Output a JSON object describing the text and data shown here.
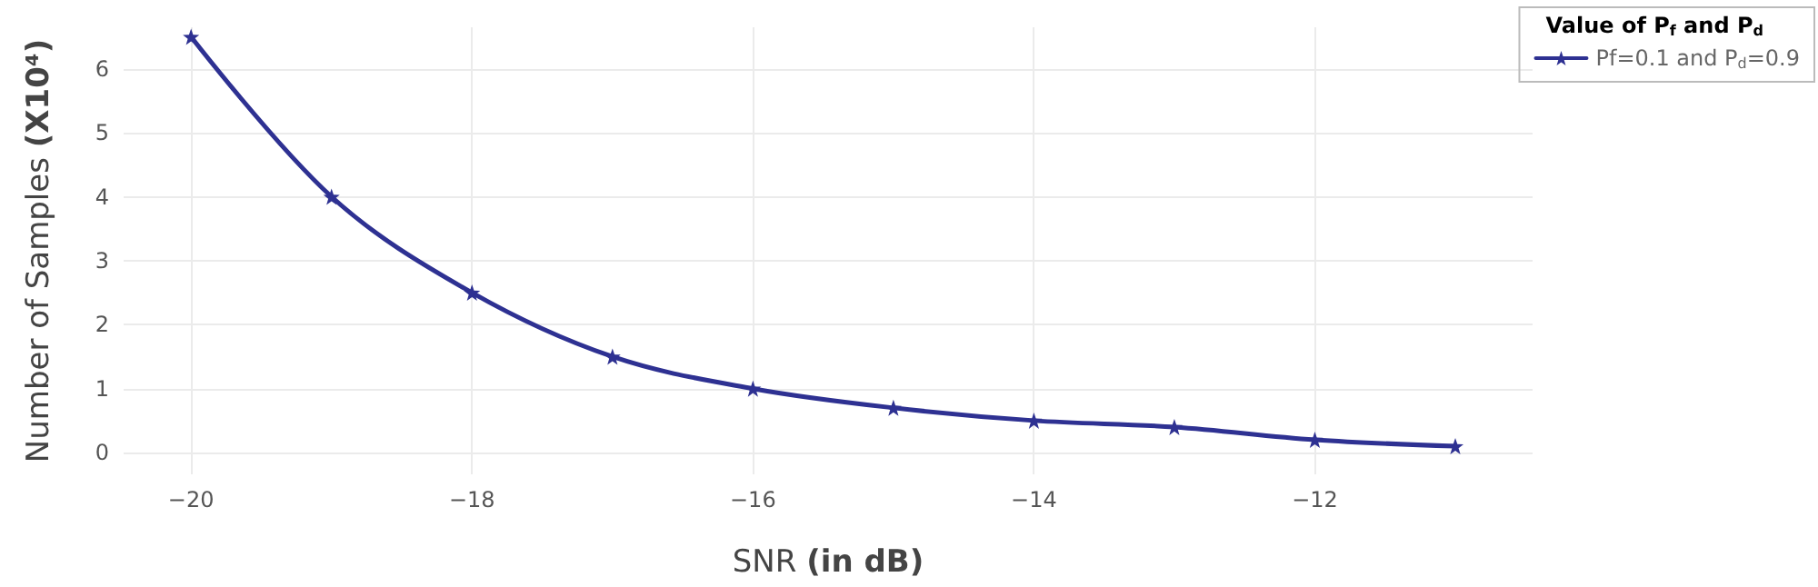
{
  "chart_data": {
    "type": "line",
    "xlabel": "SNR (in dB)",
    "ylabel": "Number of Samples (X10⁴)",
    "legend_title": "Value of P$_{f}$ and P$_{d}$",
    "x": [
      -20,
      -19,
      -18,
      -17,
      -16,
      -15,
      -14,
      -13,
      -12,
      -11
    ],
    "series": [
      {
        "name": "Pf=0.1 and P$_{d}$=0.9",
        "color": "#2e3192",
        "values": [
          6.5,
          4,
          2.5,
          1.5,
          1,
          0.7,
          0.5,
          0.4,
          0.2,
          0.1
        ]
      }
    ],
    "xlim": [
      -20.48,
      -10.45
    ],
    "xticks": [
      -20,
      -18,
      -16,
      -14,
      -12
    ],
    "ylim": [
      -0.34,
      6.65
    ],
    "yticks": [
      0,
      1,
      2,
      3,
      4,
      5,
      6
    ],
    "grid": true,
    "legend": "top right",
    "marker": "star",
    "line_style": "solid"
  }
}
